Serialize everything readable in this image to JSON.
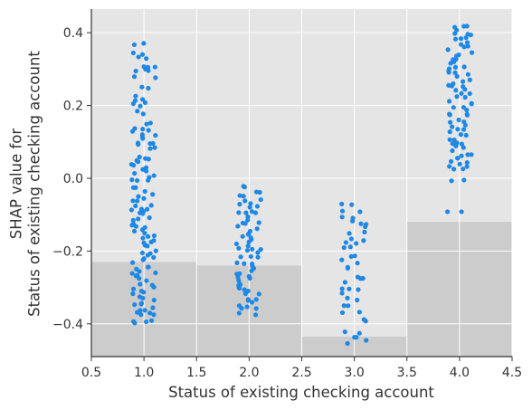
{
  "chart_data": {
    "type": "scatter",
    "title": "",
    "xlabel": "Status of existing checking account",
    "ylabel": "SHAP value for\nStatus of existing checking account",
    "xlim": [
      0.5,
      4.5
    ],
    "ylim": [
      -0.49,
      0.465
    ],
    "xticks": [
      "0.5",
      "1.0",
      "1.5",
      "2.0",
      "2.5",
      "3.0",
      "3.5",
      "4.0",
      "4.5"
    ],
    "yticks": [
      "−0.4",
      "−0.2",
      "0.0",
      "0.2",
      "0.4"
    ],
    "grid": true,
    "colors": {
      "plot_background": "#e5e5e5",
      "grid": "#ffffff",
      "histogram": "#cccccc",
      "point": "#1e88e5",
      "axis": "#333333"
    },
    "histogram_bins": [
      {
        "x_range": [
          0.5,
          1.5
        ],
        "top_y": -0.23
      },
      {
        "x_range": [
          1.5,
          2.5
        ],
        "top_y": -0.24
      },
      {
        "x_range": [
          2.5,
          3.5
        ],
        "top_y": -0.435
      },
      {
        "x_range": [
          3.5,
          4.5
        ],
        "top_y": -0.12
      }
    ],
    "series": [
      {
        "x": 1.0,
        "y_min": -0.4,
        "y_max": 0.37,
        "y_values": [
          0.37,
          0.34,
          0.33,
          0.31,
          0.3,
          0.3,
          0.28,
          0.25,
          0.22,
          0.21,
          0.2,
          0.18,
          0.15,
          0.14,
          0.13,
          0.12,
          0.11,
          0.1,
          0.09,
          0.08,
          0.06,
          0.05,
          0.04,
          0.03,
          0.02,
          0.01,
          0.0,
          -0.01,
          -0.02,
          -0.04,
          -0.05,
          -0.06,
          -0.07,
          -0.08,
          -0.09,
          -0.1,
          -0.11,
          -0.12,
          -0.13,
          -0.14,
          -0.15,
          -0.16,
          -0.17,
          -0.18,
          -0.19,
          -0.2,
          -0.21,
          -0.22,
          -0.23,
          -0.24,
          -0.25,
          -0.26,
          -0.27,
          -0.28,
          -0.29,
          -0.3,
          -0.31,
          -0.32,
          -0.33,
          -0.34,
          -0.35,
          -0.36,
          -0.37,
          -0.38,
          -0.39,
          -0.4
        ]
      },
      {
        "x": 2.0,
        "y_min": -0.37,
        "y_max": -0.02,
        "y_values": [
          -0.02,
          -0.04,
          -0.05,
          -0.06,
          -0.07,
          -0.08,
          -0.09,
          -0.1,
          -0.11,
          -0.12,
          -0.13,
          -0.14,
          -0.15,
          -0.16,
          -0.17,
          -0.18,
          -0.19,
          -0.2,
          -0.21,
          -0.22,
          -0.23,
          -0.24,
          -0.25,
          -0.26,
          -0.27,
          -0.28,
          -0.29,
          -0.3,
          -0.31,
          -0.32,
          -0.33,
          -0.34,
          -0.35,
          -0.36,
          -0.37
        ]
      },
      {
        "x": 3.0,
        "y_min": -0.45,
        "y_max": -0.07,
        "y_values": [
          -0.07,
          -0.09,
          -0.11,
          -0.12,
          -0.13,
          -0.15,
          -0.17,
          -0.18,
          -0.19,
          -0.21,
          -0.23,
          -0.25,
          -0.27,
          -0.28,
          -0.3,
          -0.31,
          -0.33,
          -0.35,
          -0.37,
          -0.39,
          -0.42,
          -0.44,
          -0.45
        ]
      },
      {
        "x": 4.0,
        "y_min": -0.09,
        "y_max": 0.42,
        "y_values": [
          0.42,
          0.41,
          0.4,
          0.39,
          0.38,
          0.37,
          0.36,
          0.35,
          0.34,
          0.33,
          0.32,
          0.31,
          0.3,
          0.29,
          0.28,
          0.27,
          0.26,
          0.25,
          0.24,
          0.23,
          0.22,
          0.21,
          0.2,
          0.19,
          0.18,
          0.17,
          0.16,
          0.15,
          0.14,
          0.13,
          0.12,
          0.11,
          0.1,
          0.09,
          0.08,
          0.07,
          0.06,
          0.05,
          0.04,
          0.03,
          0.02,
          -0.01,
          -0.09
        ]
      }
    ]
  }
}
